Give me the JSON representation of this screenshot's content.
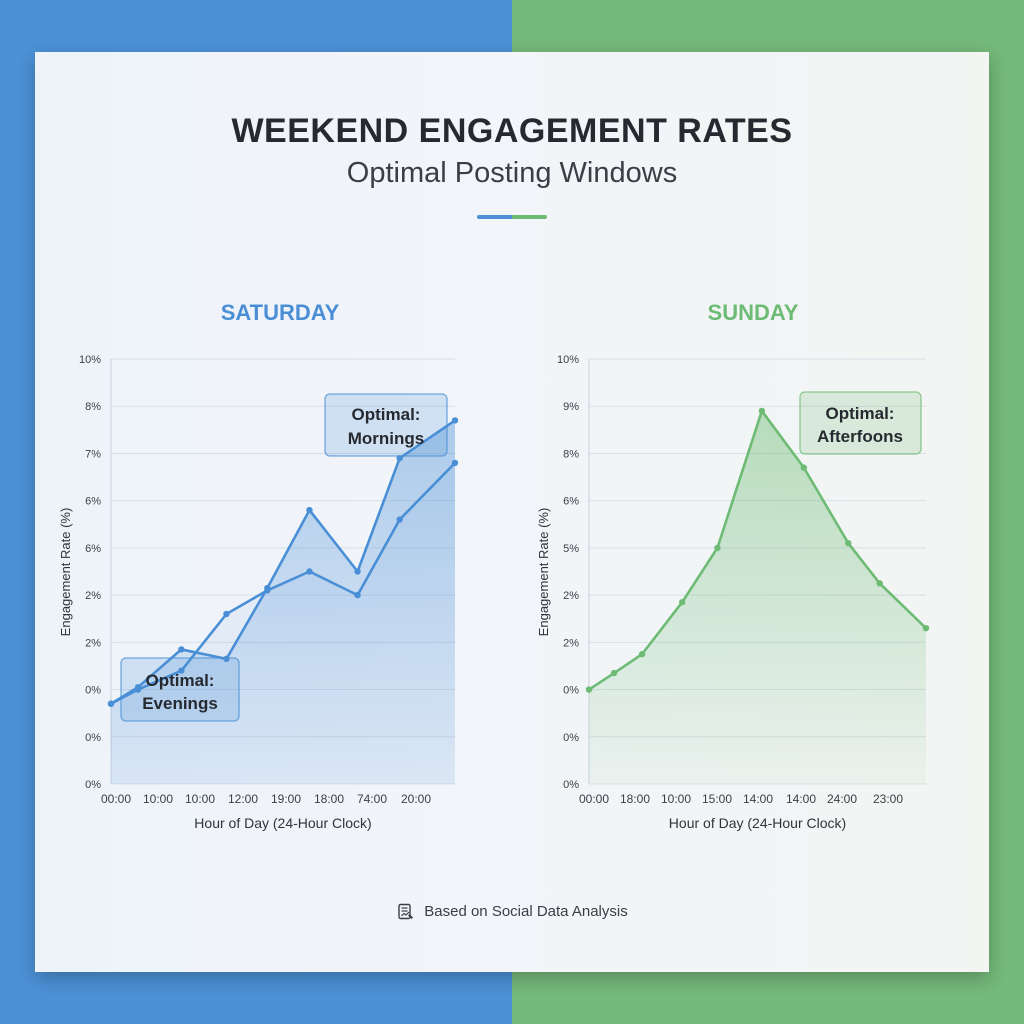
{
  "page": {
    "title": "WEEKEND ENGAGEMENT RATES",
    "subtitle": "Optimal Posting Windows",
    "footer": "Based on Social Data Analysis",
    "colors": {
      "saturday": "#4a8fd6",
      "sunday": "#6dbb74",
      "left_background": "#4c91d6",
      "right_background": "#75b97b"
    }
  },
  "chart_data": [
    {
      "type": "line",
      "title": "SATURDAY",
      "xlabel": "Hour of Day (24-Hour Clock)",
      "ylabel": "Engagement Rate (%)",
      "y_tick_labels": [
        "10%",
        "8%",
        "7%",
        "6%",
        "6%",
        "2%",
        "2%",
        "0%",
        "0%",
        "0%"
      ],
      "x_tick_labels": [
        "00:00",
        "10:00",
        "10:00",
        "12:00",
        "19:00",
        "18:00",
        "74:00",
        "20:00"
      ],
      "ylim": [
        0,
        9
      ],
      "grid": true,
      "series": [
        {
          "color": "#4a8fd6",
          "x": [
            0,
            0.45,
            1.17,
            1.92,
            2.6,
            3.3,
            4.1,
            4.8,
            5.72
          ],
          "values": [
            1.7,
            2.05,
            2.85,
            2.65,
            4.15,
            5.8,
            4.5,
            6.9,
            7.7
          ]
        },
        {
          "color": "#4a8fd6",
          "x": [
            0,
            0.45,
            1.17,
            1.92,
            2.6,
            3.3,
            4.1,
            4.8,
            5.72
          ],
          "values": [
            1.7,
            2.0,
            2.4,
            3.6,
            4.1,
            4.5,
            4.0,
            5.6,
            6.8
          ]
        }
      ],
      "annotations": [
        {
          "text": "Optimal: Mornings"
        },
        {
          "text": "Optimal: Evenings"
        }
      ]
    },
    {
      "type": "area",
      "title": "SUNDAY",
      "xlabel": "Hour of Day (24-Hour Clock)",
      "ylabel": "Engagement Rate (%)",
      "y_tick_labels": [
        "10%",
        "9%",
        "8%",
        "6%",
        "5%",
        "2%",
        "2%",
        "0%",
        "0%",
        "0%"
      ],
      "x_tick_labels": [
        "00:00",
        "18:00",
        "10:00",
        "15:00",
        "14:00",
        "14:00",
        "24:00",
        "23:00"
      ],
      "ylim": [
        0,
        9
      ],
      "grid": true,
      "series": [
        {
          "color": "#6dbb74",
          "x": [
            0,
            0.52,
            1.1,
            1.93,
            2.66,
            3.58,
            4.45,
            5.37,
            6.02,
            6.98
          ],
          "values": [
            2.0,
            2.35,
            2.75,
            3.85,
            5.0,
            7.9,
            6.7,
            5.1,
            4.25,
            3.3
          ]
        }
      ],
      "annotations": [
        {
          "text": "Optimal: Afterfoons"
        }
      ]
    }
  ]
}
